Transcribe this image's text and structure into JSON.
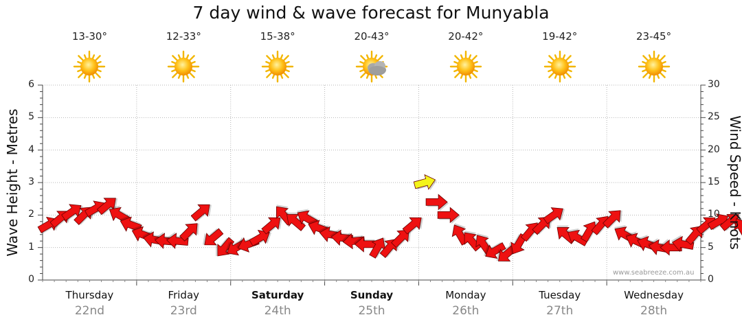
{
  "chart_data": {
    "type": "line",
    "title": "7 day wind & wave forecast for Munyabla",
    "ylabel": "Wave Height - Metres",
    "y2label": "Wind Speed - Knots",
    "ylim": [
      0,
      6
    ],
    "y2lim": [
      0,
      30
    ],
    "yticks": [
      "0",
      "1",
      "2",
      "3",
      "4",
      "5",
      "6"
    ],
    "y2ticks": [
      "0",
      "5",
      "10",
      "15",
      "20",
      "25",
      "30"
    ],
    "grid": true,
    "days": [
      {
        "name": "Thursday",
        "date": "22nd",
        "temp": "13-30°",
        "icon": "sun-icon",
        "bold": false
      },
      {
        "name": "Friday",
        "date": "23rd",
        "temp": "12-33°",
        "icon": "sun-icon",
        "bold": false
      },
      {
        "name": "Saturday",
        "date": "24th",
        "temp": "15-38°",
        "icon": "sun-icon",
        "bold": true
      },
      {
        "name": "Sunday",
        "date": "25th",
        "temp": "20-43°",
        "icon": "sun-cloud-icon",
        "bold": true
      },
      {
        "name": "Monday",
        "date": "26th",
        "temp": "20-42°",
        "icon": "sun-icon",
        "bold": false
      },
      {
        "name": "Tuesday",
        "date": "27th",
        "temp": "19-42°",
        "icon": "sun-icon",
        "bold": false
      },
      {
        "name": "Wednesday",
        "date": "28th",
        "temp": "23-45°",
        "icon": "sun-icon",
        "bold": false
      }
    ],
    "series": [
      {
        "name": "Wind Speed - Knots",
        "direction_units": "degrees (arrow points toward)",
        "x_hours": [
          0,
          3,
          6,
          9,
          12,
          15,
          18,
          21,
          24,
          27,
          30,
          33,
          36,
          39,
          42,
          45,
          48,
          51,
          54,
          57,
          60,
          63,
          66,
          69,
          72,
          75,
          78,
          81,
          84,
          87,
          90,
          93,
          96,
          99,
          102,
          105,
          108,
          111,
          114,
          117,
          120,
          123,
          126,
          129,
          132,
          135,
          138,
          141,
          144,
          147,
          150,
          153,
          156,
          159,
          162,
          165,
          168,
          171,
          174,
          177
        ],
        "values": [
          8.5,
          9.5,
          10.5,
          10,
          11,
          11.5,
          10,
          8.5,
          7,
          6.2,
          6,
          6,
          7.5,
          10.5,
          6.5,
          5,
          5,
          5.5,
          6.5,
          8.5,
          10,
          9,
          9.5,
          8,
          7,
          6.5,
          6,
          5.5,
          5,
          5,
          6.5,
          8.5,
          15,
          12,
          10,
          7,
          6,
          5.5,
          4.5,
          4,
          5.5,
          7.5,
          8.5,
          10,
          7,
          6.5,
          7.5,
          8.5,
          9.5,
          7,
          6,
          5.5,
          5,
          5,
          5.5,
          7,
          8.5,
          9,
          9,
          8
        ],
        "directions": [
          30,
          40,
          35,
          45,
          30,
          40,
          150,
          160,
          160,
          170,
          175,
          175,
          45,
          40,
          220,
          230,
          210,
          200,
          30,
          40,
          130,
          140,
          150,
          160,
          170,
          175,
          185,
          180,
          60,
          50,
          45,
          40,
          15,
          0,
          0,
          120,
          130,
          125,
          210,
          220,
          240,
          50,
          45,
          35,
          140,
          150,
          60,
          50,
          45,
          150,
          155,
          160,
          170,
          180,
          170,
          50,
          40,
          30,
          40,
          120
        ],
        "colors": [
          "#ee1111",
          "#ee1111",
          "#ee1111",
          "#ee1111",
          "#ee1111",
          "#ee1111",
          "#ee1111",
          "#ee1111",
          "#ee1111",
          "#ee1111",
          "#ee1111",
          "#ee1111",
          "#ee1111",
          "#ee1111",
          "#ee1111",
          "#ee1111",
          "#ee1111",
          "#ee1111",
          "#ee1111",
          "#ee1111",
          "#ee1111",
          "#ee1111",
          "#ee1111",
          "#ee1111",
          "#ee1111",
          "#ee1111",
          "#ee1111",
          "#ee1111",
          "#ee1111",
          "#ee1111",
          "#ee1111",
          "#ee1111",
          "#f4f41a",
          "#ee1111",
          "#ee1111",
          "#ee1111",
          "#ee1111",
          "#ee1111",
          "#ee1111",
          "#ee1111",
          "#ee1111",
          "#ee1111",
          "#ee1111",
          "#ee1111",
          "#ee1111",
          "#ee1111",
          "#ee1111",
          "#ee1111",
          "#ee1111",
          "#ee1111",
          "#ee1111",
          "#ee1111",
          "#ee1111",
          "#ee1111",
          "#ee1111",
          "#ee1111",
          "#ee1111",
          "#ee1111",
          "#ee1111",
          "#ee1111"
        ]
      }
    ]
  },
  "credit": "www.seabreeze.com.au"
}
